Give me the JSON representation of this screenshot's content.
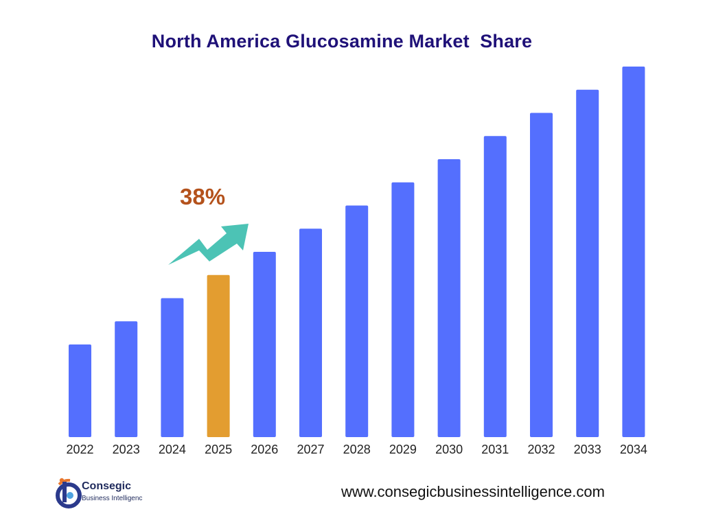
{
  "title": "North America Glucosamine Market  Share",
  "annotation": {
    "text": "38%",
    "color": "#b4521c"
  },
  "arrow": {
    "icon": "trend-up-arrow",
    "color": "#4cc3b5"
  },
  "footer": {
    "logo_name": "Consegic",
    "logo_sub": "Business Intelligenc",
    "website": "www.consegicbusinessintelligence.com"
  },
  "colors": {
    "bar": "#546ffe",
    "highlight": "#e39d30",
    "title": "#1f1178"
  },
  "chart_data": {
    "type": "bar",
    "categories": [
      "2022",
      "2023",
      "2024",
      "2025",
      "2026",
      "2027",
      "2028",
      "2029",
      "2030",
      "2031",
      "2032",
      "2033",
      "2034"
    ],
    "values": [
      4,
      5,
      6,
      7,
      8,
      9,
      10,
      11,
      12,
      13,
      14,
      15,
      16
    ],
    "highlight_category": "2025",
    "ylim": [
      0,
      16
    ],
    "grid": false,
    "legend": false,
    "xlabel": "",
    "ylabel": ""
  }
}
